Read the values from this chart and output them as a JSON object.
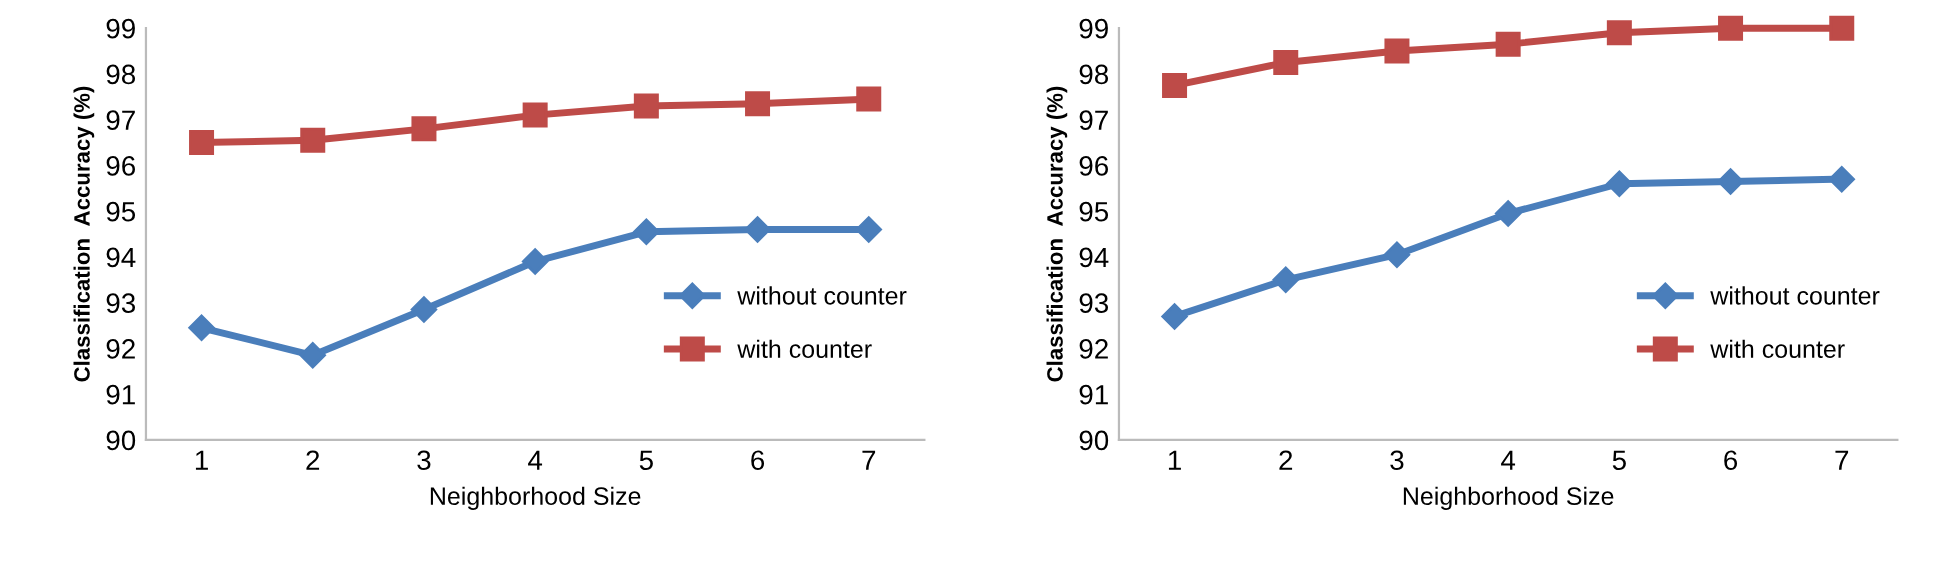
{
  "chart_data": [
    {
      "type": "line",
      "xlabel": "Neighborhood Size",
      "ylabel": "Classification  Accuracy (%)",
      "categories": [
        "1",
        "2",
        "3",
        "4",
        "5",
        "6",
        "7"
      ],
      "ylim": [
        90,
        99
      ],
      "yticks": [
        90,
        91,
        92,
        93,
        94,
        95,
        96,
        97,
        98,
        99
      ],
      "grid": false,
      "legend": "right",
      "series": [
        {
          "name": "without counter",
          "color": "#4a7ebb",
          "marker": "diamond",
          "values": [
            92.45,
            91.85,
            92.85,
            93.9,
            94.55,
            94.6,
            94.6
          ]
        },
        {
          "name": "with counter",
          "color": "#be4b48",
          "marker": "square",
          "values": [
            96.5,
            96.55,
            96.8,
            97.1,
            97.3,
            97.35,
            97.45
          ]
        }
      ]
    },
    {
      "type": "line",
      "xlabel": "Neighborhood Size",
      "ylabel": "Classification  Accuracy (%)",
      "categories": [
        "1",
        "2",
        "3",
        "4",
        "5",
        "6",
        "7"
      ],
      "ylim": [
        90,
        99
      ],
      "yticks": [
        90,
        91,
        92,
        93,
        94,
        95,
        96,
        97,
        98,
        99
      ],
      "grid": false,
      "legend": "right",
      "series": [
        {
          "name": "without counter",
          "color": "#4a7ebb",
          "marker": "diamond",
          "values": [
            92.7,
            93.5,
            94.05,
            94.95,
            95.6,
            95.65,
            95.7
          ]
        },
        {
          "name": "with counter",
          "color": "#be4b48",
          "marker": "square",
          "values": [
            97.75,
            98.25,
            98.5,
            98.65,
            98.9,
            99.0,
            99.0
          ]
        }
      ]
    }
  ]
}
